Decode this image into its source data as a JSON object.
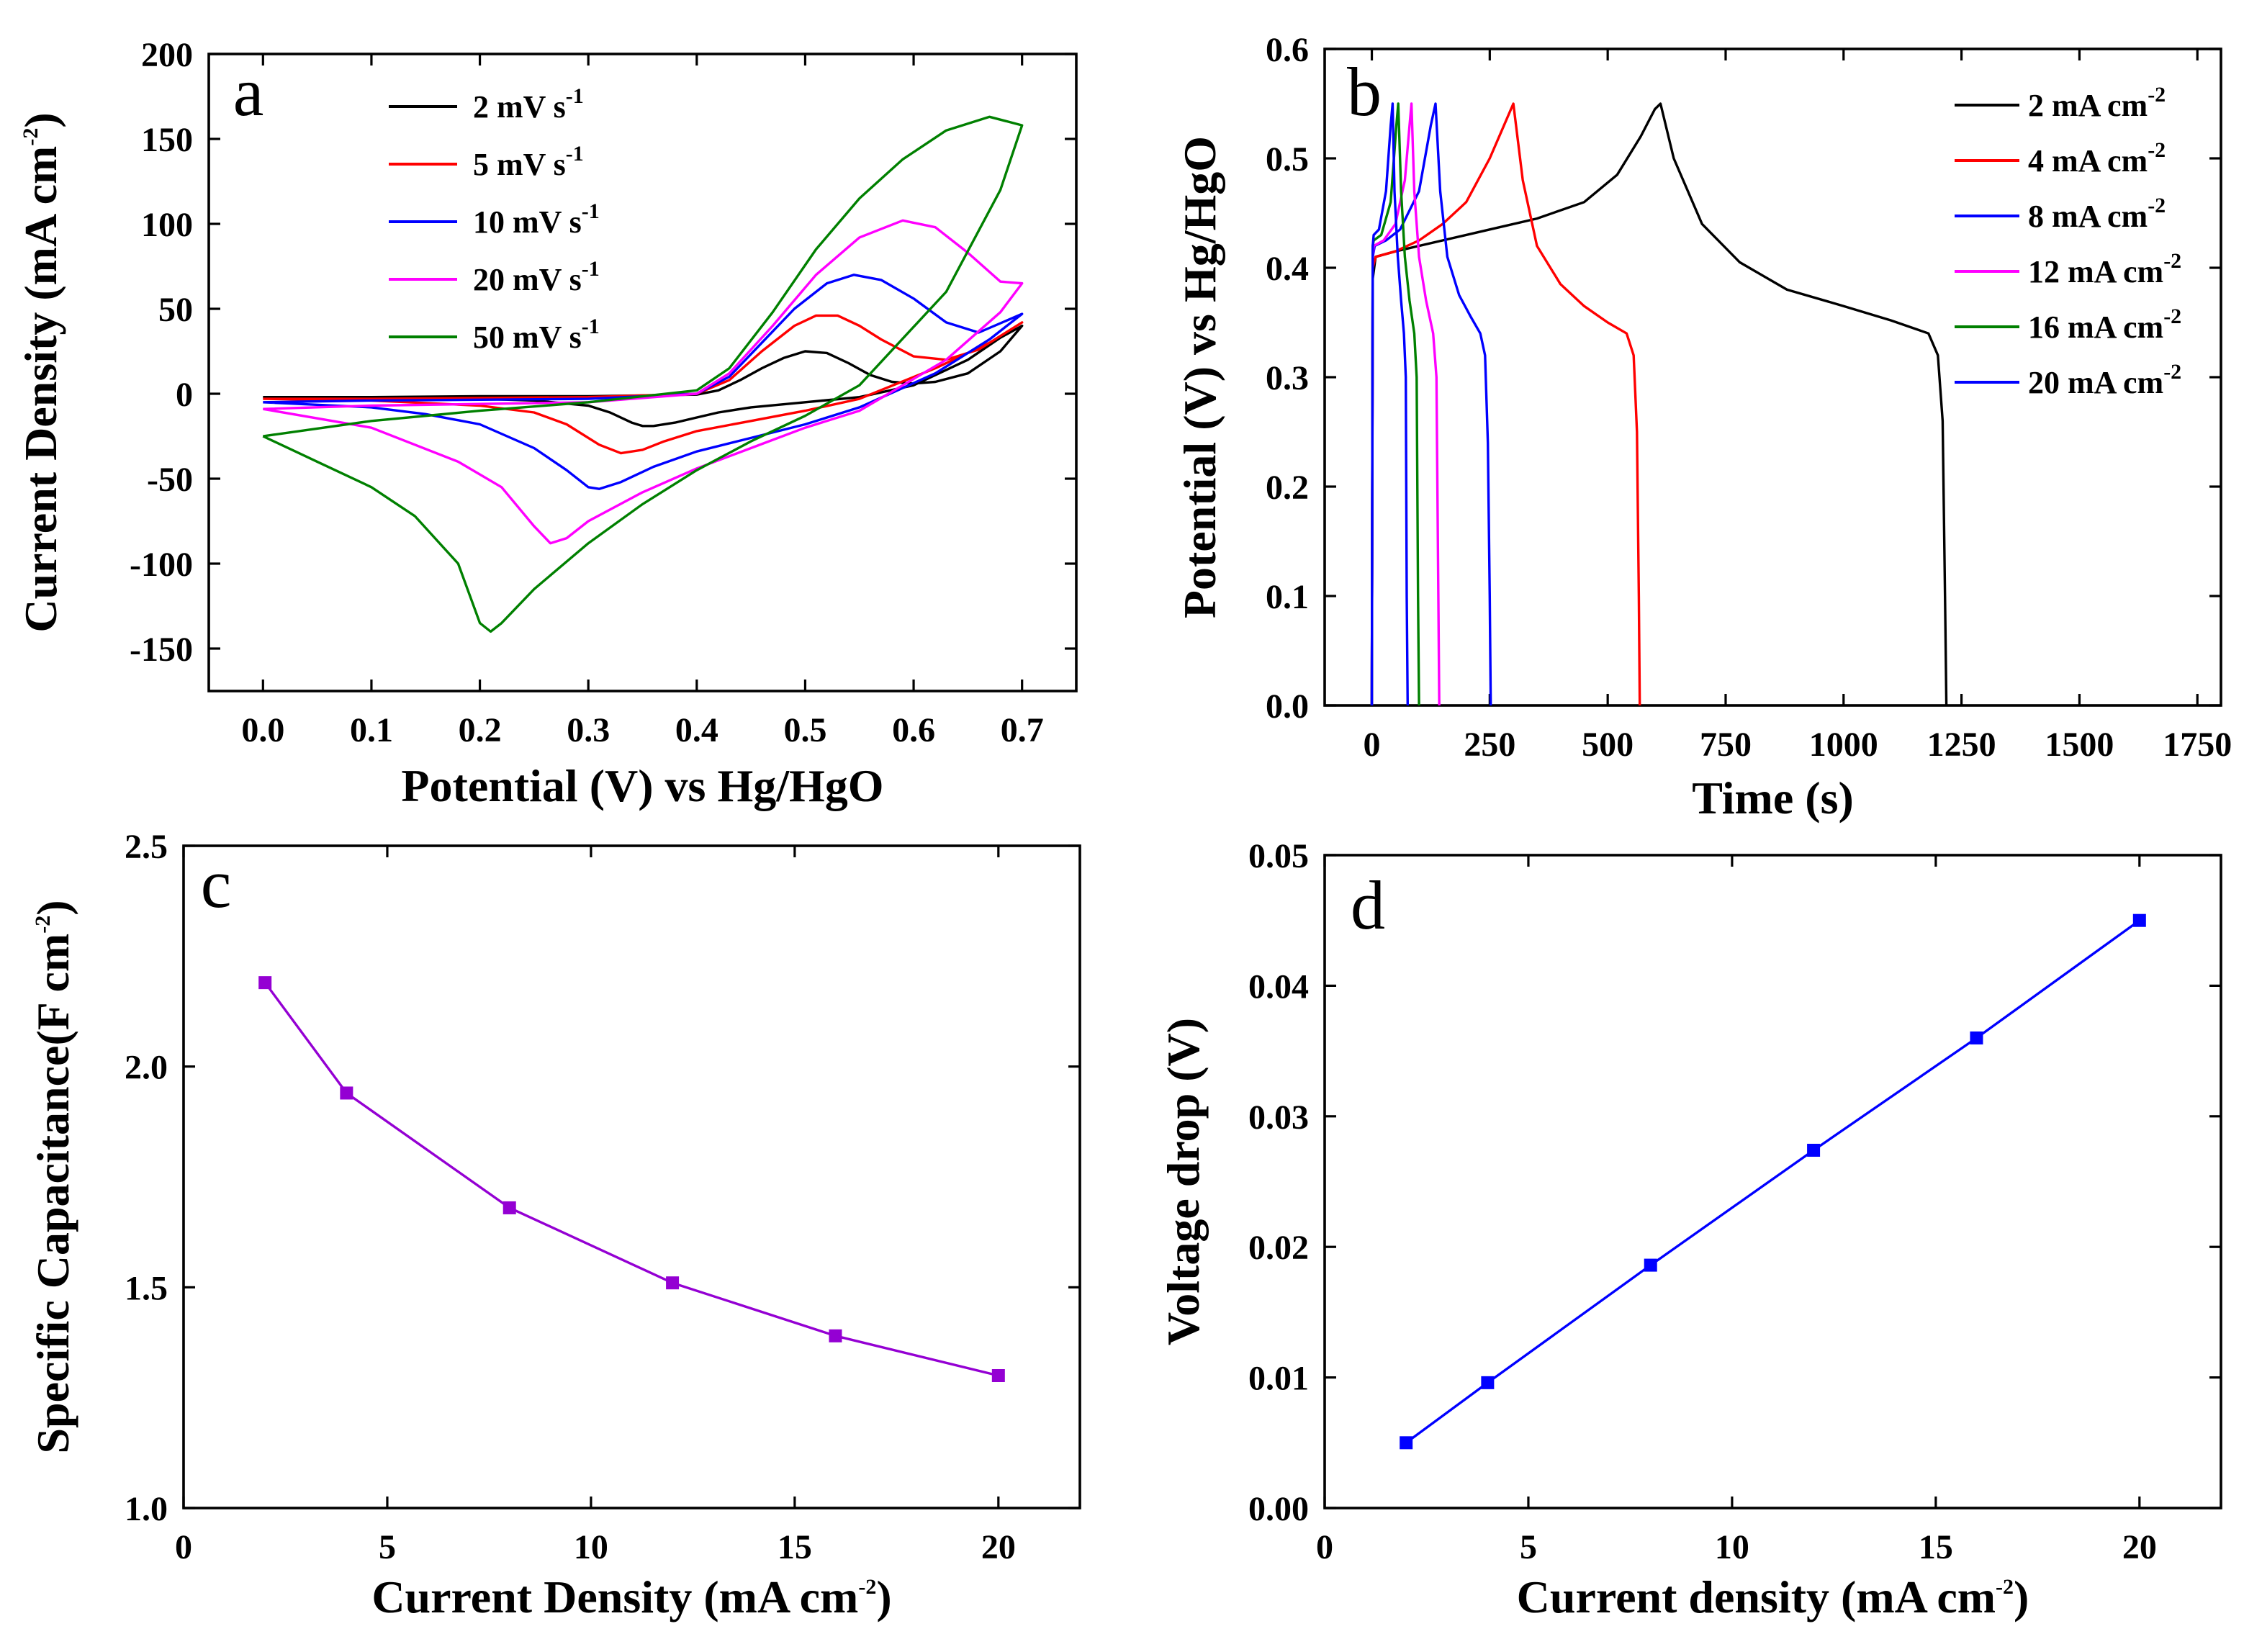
{
  "chart_data": [
    {
      "id": "a",
      "type": "line",
      "panel_label": "a",
      "xlabel": "Potential (V) vs Hg/HgO",
      "ylabel": "Current Density (mA cm",
      "ylabel_sup": "-2",
      "ylabel_close": ")",
      "xlim": [
        -0.05,
        0.75
      ],
      "ylim": [
        -175,
        200
      ],
      "xticks": [
        0.0,
        0.1,
        0.2,
        0.3,
        0.4,
        0.5,
        0.6,
        0.7
      ],
      "xtick_labels": [
        "0.0",
        "0.1",
        "0.2",
        "0.3",
        "0.4",
        "0.5",
        "0.6",
        "0.7"
      ],
      "yticks": [
        200,
        150,
        100,
        50,
        0,
        -50,
        -100,
        -150
      ],
      "ytick_labels": [
        "200",
        "150",
        "100",
        "50",
        "0",
        "-50",
        "-100",
        "-150"
      ],
      "legend_position": "top-center",
      "series": [
        {
          "name": "2  mV s",
          "sup": "-1",
          "color": "#000000",
          "x": [
            0.0,
            0.1,
            0.2,
            0.3,
            0.4,
            0.42,
            0.44,
            0.46,
            0.48,
            0.5,
            0.52,
            0.54,
            0.56,
            0.58,
            0.6,
            0.62,
            0.65,
            0.68,
            0.7,
            0.68,
            0.65,
            0.6,
            0.55,
            0.5,
            0.45,
            0.42,
            0.4,
            0.38,
            0.36,
            0.35,
            0.34,
            0.32,
            0.3,
            0.25,
            0.2,
            0.1,
            0.0
          ],
          "y": [
            -2,
            -2,
            -1.5,
            -1.5,
            -0.5,
            2,
            8,
            15,
            21,
            25,
            24,
            18,
            11,
            7,
            6,
            7,
            12,
            25,
            40,
            33,
            20,
            5,
            -2,
            -5,
            -8,
            -11,
            -14,
            -17,
            -19,
            -19,
            -17,
            -11,
            -7,
            -4,
            -3,
            -3,
            -2
          ]
        },
        {
          "name": "5  mV s",
          "sup": "-1",
          "color": "#ff0000",
          "x": [
            0.0,
            0.1,
            0.2,
            0.3,
            0.4,
            0.43,
            0.46,
            0.49,
            0.51,
            0.53,
            0.55,
            0.57,
            0.6,
            0.63,
            0.66,
            0.7,
            0.67,
            0.62,
            0.55,
            0.5,
            0.45,
            0.4,
            0.37,
            0.35,
            0.33,
            0.31,
            0.28,
            0.25,
            0.2,
            0.1,
            0.0
          ],
          "y": [
            -3,
            -3,
            -2.5,
            -2,
            0,
            8,
            25,
            40,
            46,
            46,
            40,
            32,
            22,
            20,
            26,
            42,
            30,
            15,
            -3,
            -10,
            -16,
            -22,
            -28,
            -33,
            -35,
            -30,
            -18,
            -11,
            -7,
            -4,
            -3
          ]
        },
        {
          "name": "10 mV s",
          "sup": "-1",
          "color": "#0000ff",
          "x": [
            0.0,
            0.1,
            0.2,
            0.3,
            0.4,
            0.43,
            0.46,
            0.49,
            0.52,
            0.545,
            0.57,
            0.6,
            0.63,
            0.66,
            0.7,
            0.67,
            0.62,
            0.55,
            0.5,
            0.45,
            0.4,
            0.36,
            0.33,
            0.31,
            0.3,
            0.28,
            0.25,
            0.2,
            0.15,
            0.1,
            0.0
          ],
          "y": [
            -5,
            -4,
            -3.5,
            -3,
            0,
            10,
            30,
            50,
            65,
            70,
            67,
            56,
            42,
            36,
            47,
            32,
            12,
            -8,
            -18,
            -26,
            -34,
            -43,
            -52,
            -56,
            -55,
            -45,
            -32,
            -18,
            -12,
            -8,
            -5
          ]
        },
        {
          "name": "20 mV s",
          "sup": "-1",
          "color": "#ff00ff",
          "x": [
            0.0,
            0.1,
            0.2,
            0.3,
            0.4,
            0.43,
            0.47,
            0.51,
            0.55,
            0.59,
            0.62,
            0.65,
            0.68,
            0.7,
            0.68,
            0.63,
            0.55,
            0.5,
            0.45,
            0.4,
            0.35,
            0.3,
            0.28,
            0.265,
            0.25,
            0.22,
            0.18,
            0.1,
            0.0
          ],
          "y": [
            -9,
            -7,
            -6,
            -5,
            0,
            12,
            40,
            70,
            92,
            102,
            98,
            83,
            66,
            65,
            48,
            20,
            -10,
            -20,
            -32,
            -44,
            -58,
            -75,
            -85,
            -88,
            -78,
            -55,
            -40,
            -20,
            -9
          ]
        },
        {
          "name": "50 mV s",
          "sup": "-1",
          "color": "#008000",
          "x": [
            0.0,
            0.1,
            0.2,
            0.3,
            0.4,
            0.43,
            0.47,
            0.51,
            0.55,
            0.59,
            0.63,
            0.67,
            0.7,
            0.68,
            0.63,
            0.55,
            0.5,
            0.45,
            0.4,
            0.35,
            0.3,
            0.25,
            0.22,
            0.21,
            0.2,
            0.18,
            0.14,
            0.1,
            0.05,
            0.0
          ],
          "y": [
            -25,
            -16,
            -10,
            -5,
            2,
            15,
            48,
            85,
            115,
            138,
            155,
            163,
            158,
            120,
            60,
            5,
            -13,
            -28,
            -45,
            -65,
            -88,
            -115,
            -135,
            -140,
            -135,
            -100,
            -72,
            -55,
            -40,
            -25
          ]
        }
      ]
    },
    {
      "id": "b",
      "type": "line",
      "panel_label": "b",
      "xlabel": "Time (s)",
      "ylabel": "Potential (V) vs Hg/HgO",
      "xlim": [
        -100,
        1800
      ],
      "ylim": [
        0.0,
        0.6
      ],
      "xticks": [
        0,
        250,
        500,
        750,
        1000,
        1250,
        1500,
        1750
      ],
      "xtick_labels": [
        "0",
        "250",
        "500",
        "750",
        "1000",
        "1250",
        "1500",
        "1750"
      ],
      "yticks": [
        0.0,
        0.1,
        0.2,
        0.3,
        0.4,
        0.5,
        0.6
      ],
      "ytick_labels": [
        "0.0",
        "0.1",
        "0.2",
        "0.3",
        "0.4",
        "0.5",
        "0.6"
      ],
      "legend_position": "top-right",
      "series": [
        {
          "name": "2  mA cm",
          "sup": "-2",
          "color": "#000000",
          "x": [
            0,
            2,
            8,
            50,
            150,
            250,
            350,
            450,
            520,
            570,
            600,
            612,
            640,
            700,
            780,
            880,
            1000,
            1100,
            1180,
            1200,
            1210,
            1215,
            1218
          ],
          "y": [
            0.0,
            0.39,
            0.41,
            0.415,
            0.425,
            0.435,
            0.445,
            0.46,
            0.485,
            0.52,
            0.545,
            0.55,
            0.5,
            0.44,
            0.405,
            0.38,
            0.365,
            0.352,
            0.34,
            0.32,
            0.26,
            0.1,
            0.0
          ]
        },
        {
          "name": "4  mA cm",
          "sup": "-2",
          "color": "#ff0000",
          "x": [
            0,
            2,
            8,
            50,
            100,
            150,
            200,
            250,
            280,
            300,
            320,
            350,
            400,
            450,
            500,
            540,
            555,
            562,
            566,
            568
          ],
          "y": [
            0.0,
            0.4,
            0.41,
            0.415,
            0.425,
            0.44,
            0.46,
            0.5,
            0.53,
            0.55,
            0.48,
            0.42,
            0.385,
            0.365,
            0.35,
            0.34,
            0.32,
            0.25,
            0.1,
            0.0
          ]
        },
        {
          "name": "8  mA cm",
          "sup": "-2",
          "color": "#0000ff",
          "x": [
            0,
            2,
            6,
            30,
            60,
            100,
            125,
            135,
            145,
            160,
            185,
            210,
            230,
            240,
            246,
            250,
            252
          ],
          "y": [
            0.0,
            0.41,
            0.42,
            0.425,
            0.435,
            0.47,
            0.53,
            0.55,
            0.47,
            0.41,
            0.375,
            0.355,
            0.34,
            0.32,
            0.24,
            0.1,
            0.0
          ]
        },
        {
          "name": "12 mA cm",
          "sup": "-2",
          "color": "#ff00ff",
          "x": [
            0,
            2,
            4,
            25,
            50,
            70,
            80,
            84,
            90,
            100,
            115,
            130,
            137,
            141,
            143
          ],
          "y": [
            0.0,
            0.41,
            0.42,
            0.425,
            0.44,
            0.48,
            0.53,
            0.55,
            0.47,
            0.41,
            0.37,
            0.34,
            0.3,
            0.1,
            0.0
          ]
        },
        {
          "name": "16 mA cm",
          "sup": "-2",
          "color": "#008000",
          "x": [
            0,
            2,
            4,
            20,
            40,
            52,
            56,
            62,
            70,
            80,
            90,
            95,
            98,
            100
          ],
          "y": [
            0.0,
            0.42,
            0.425,
            0.43,
            0.46,
            0.53,
            0.55,
            0.47,
            0.41,
            0.37,
            0.34,
            0.3,
            0.1,
            0.0
          ]
        },
        {
          "name": "20 mA cm",
          "sup": "-2",
          "color": "#0000ff",
          "x": [
            0,
            2,
            4,
            15,
            30,
            40,
            44,
            48,
            55,
            62,
            68,
            72,
            74,
            76
          ],
          "y": [
            0.0,
            0.42,
            0.43,
            0.435,
            0.47,
            0.53,
            0.55,
            0.47,
            0.41,
            0.37,
            0.34,
            0.3,
            0.1,
            0.0
          ]
        }
      ]
    },
    {
      "id": "c",
      "type": "line",
      "panel_label": "c",
      "xlabel": "Current Density (mA cm",
      "xlabel_sup": "-2",
      "xlabel_close": ")",
      "ylabel": "Specific Capacitance(F cm",
      "ylabel_sup": "-2",
      "ylabel_close": ")",
      "xlim": [
        0,
        22
      ],
      "ylim": [
        1.0,
        2.5
      ],
      "xticks": [
        0,
        5,
        10,
        15,
        20
      ],
      "xtick_labels": [
        "0",
        "5",
        "10",
        "15",
        "20"
      ],
      "yticks": [
        1.0,
        1.5,
        2.0,
        2.5
      ],
      "ytick_labels": [
        "1.0",
        "1.5",
        "2.0",
        "2.5"
      ],
      "series": [
        {
          "name": "capacitance",
          "color": "#9400d3",
          "x": [
            2,
            4,
            8,
            12,
            16,
            20
          ],
          "y": [
            2.19,
            1.94,
            1.68,
            1.51,
            1.39,
            1.3
          ]
        }
      ]
    },
    {
      "id": "d",
      "type": "line",
      "panel_label": "d",
      "xlabel": "Current density (mA cm",
      "xlabel_sup": "-2",
      "xlabel_close": ")",
      "ylabel": "Voltage drop (V)",
      "xlim": [
        0,
        22
      ],
      "ylim": [
        0.0,
        0.05
      ],
      "xticks": [
        0,
        5,
        10,
        15,
        20
      ],
      "xtick_labels": [
        "0",
        "5",
        "10",
        "15",
        "20"
      ],
      "yticks": [
        0.0,
        0.01,
        0.02,
        0.03,
        0.04,
        0.05
      ],
      "ytick_labels": [
        "0.00",
        "0.01",
        "0.02",
        "0.03",
        "0.04",
        "0.05"
      ],
      "series": [
        {
          "name": "voltage drop",
          "color": "#0000ff",
          "x": [
            2,
            4,
            8,
            12,
            16,
            20
          ],
          "y": [
            0.005,
            0.0096,
            0.0186,
            0.0274,
            0.036,
            0.045
          ]
        }
      ]
    }
  ]
}
